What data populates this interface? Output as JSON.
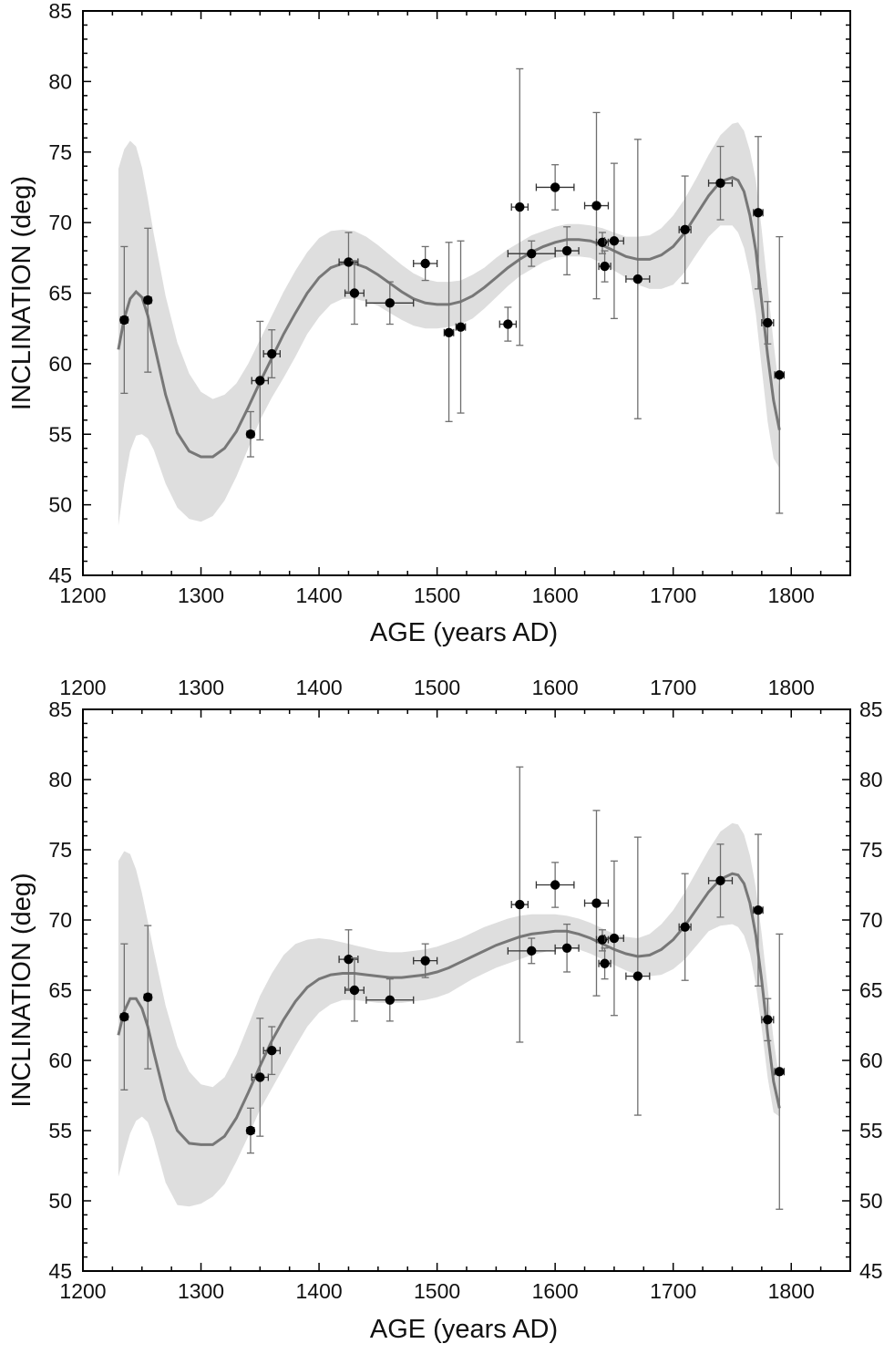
{
  "chart_data": [
    {
      "type": "scatter",
      "panel": "top",
      "title": "",
      "xlabel": "AGE (years AD)",
      "ylabel": "INCLINATION (deg)",
      "xlim": [
        1200,
        1850
      ],
      "ylim": [
        45,
        85
      ],
      "x_ticks": [
        1200,
        1300,
        1400,
        1500,
        1600,
        1700,
        1800
      ],
      "x_tick_labels": [
        "1200",
        "1300",
        "1400",
        "1500",
        "1600",
        "1700",
        "1800"
      ],
      "y_ticks": [
        45,
        50,
        55,
        60,
        65,
        70,
        75,
        80,
        85
      ],
      "y_tick_labels": [
        "45",
        "50",
        "55",
        "60",
        "65",
        "70",
        "75",
        "80",
        "85"
      ],
      "x_tick_labels_top": [],
      "y_tick_labels_right": [],
      "grid": false,
      "points": [
        {
          "x": 1235,
          "y": 63.1,
          "xerr": 3,
          "ylo": 57.9,
          "yhi": 68.3
        },
        {
          "x": 1255,
          "y": 64.5,
          "xerr": 3,
          "ylo": 59.4,
          "yhi": 69.6
        },
        {
          "x": 1342,
          "y": 55.0,
          "xerr": 3,
          "ylo": 53.4,
          "yhi": 56.6
        },
        {
          "x": 1350,
          "y": 58.8,
          "xerr": 7,
          "ylo": 54.6,
          "yhi": 63.0
        },
        {
          "x": 1360,
          "y": 60.7,
          "xerr": 7,
          "ylo": 59.0,
          "yhi": 62.4
        },
        {
          "x": 1425,
          "y": 67.2,
          "xerr": 8,
          "ylo": 65.1,
          "yhi": 69.3
        },
        {
          "x": 1430,
          "y": 65.0,
          "xerr": 8,
          "ylo": 62.8,
          "yhi": 67.3
        },
        {
          "x": 1460,
          "y": 64.3,
          "xerr": 20,
          "ylo": 62.8,
          "yhi": 65.8
        },
        {
          "x": 1490,
          "y": 67.1,
          "xerr": 10,
          "ylo": 65.9,
          "yhi": 68.3
        },
        {
          "x": 1510,
          "y": 62.2,
          "xerr": 4,
          "ylo": 55.9,
          "yhi": 68.6
        },
        {
          "x": 1520,
          "y": 62.6,
          "xerr": 4,
          "ylo": 56.5,
          "yhi": 68.7
        },
        {
          "x": 1560,
          "y": 62.8,
          "xerr": 7,
          "ylo": 61.6,
          "yhi": 64.0
        },
        {
          "x": 1570,
          "y": 71.1,
          "xerr": 7,
          "ylo": 61.3,
          "yhi": 80.9
        },
        {
          "x": 1580,
          "y": 67.8,
          "xerr": 20,
          "ylo": 66.9,
          "yhi": 68.7
        },
        {
          "x": 1600,
          "y": 72.5,
          "xerr": 16,
          "ylo": 70.9,
          "yhi": 74.1
        },
        {
          "x": 1610,
          "y": 68.0,
          "xerr": 10,
          "ylo": 66.3,
          "yhi": 69.7
        },
        {
          "x": 1635,
          "y": 71.2,
          "xerr": 10,
          "ylo": 64.6,
          "yhi": 77.8
        },
        {
          "x": 1640,
          "y": 68.6,
          "xerr": 5,
          "ylo": 67.8,
          "yhi": 69.3
        },
        {
          "x": 1642,
          "y": 66.9,
          "xerr": 5,
          "ylo": 65.8,
          "yhi": 68.0
        },
        {
          "x": 1650,
          "y": 68.7,
          "xerr": 8,
          "ylo": 63.2,
          "yhi": 74.2
        },
        {
          "x": 1670,
          "y": 66.0,
          "xerr": 10,
          "ylo": 56.1,
          "yhi": 75.9
        },
        {
          "x": 1710,
          "y": 69.5,
          "xerr": 5,
          "ylo": 65.7,
          "yhi": 73.3
        },
        {
          "x": 1740,
          "y": 72.8,
          "xerr": 10,
          "ylo": 70.2,
          "yhi": 75.4
        },
        {
          "x": 1772,
          "y": 70.7,
          "xerr": 4,
          "ylo": 65.3,
          "yhi": 76.1
        },
        {
          "x": 1780,
          "y": 62.9,
          "xerr": 5,
          "ylo": 61.4,
          "yhi": 64.4
        },
        {
          "x": 1790,
          "y": 59.2,
          "xerr": 4,
          "ylo": 49.4,
          "yhi": 69.0
        }
      ],
      "curve": {
        "x": [
          1230,
          1235,
          1240,
          1245,
          1250,
          1255,
          1260,
          1270,
          1280,
          1290,
          1300,
          1310,
          1320,
          1330,
          1340,
          1350,
          1360,
          1370,
          1380,
          1390,
          1400,
          1410,
          1420,
          1430,
          1440,
          1450,
          1460,
          1470,
          1480,
          1490,
          1500,
          1510,
          1520,
          1530,
          1540,
          1550,
          1560,
          1570,
          1580,
          1590,
          1600,
          1610,
          1620,
          1630,
          1640,
          1650,
          1660,
          1670,
          1680,
          1690,
          1700,
          1710,
          1720,
          1730,
          1740,
          1750,
          1755,
          1760,
          1765,
          1770,
          1775,
          1780,
          1785,
          1790
        ],
        "y": [
          61.0,
          63.2,
          64.6,
          65.1,
          64.7,
          63.4,
          61.5,
          57.8,
          55.1,
          53.8,
          53.4,
          53.4,
          54.0,
          55.2,
          56.9,
          58.7,
          60.4,
          62.1,
          63.6,
          65.0,
          66.1,
          66.8,
          67.1,
          67.1,
          66.8,
          66.3,
          65.7,
          65.1,
          64.6,
          64.3,
          64.2,
          64.2,
          64.4,
          64.8,
          65.4,
          66.1,
          66.8,
          67.4,
          67.9,
          68.3,
          68.6,
          68.8,
          68.8,
          68.7,
          68.4,
          68.0,
          67.6,
          67.4,
          67.4,
          67.7,
          68.3,
          69.3,
          70.6,
          71.9,
          72.9,
          73.2,
          73.0,
          72.2,
          70.5,
          68.0,
          64.4,
          60.6,
          57.4,
          55.3
        ],
        "upper": [
          73.8,
          75.2,
          75.8,
          75.4,
          73.9,
          71.7,
          69.2,
          64.8,
          61.5,
          59.3,
          58.0,
          57.5,
          57.8,
          58.6,
          60.0,
          61.7,
          63.4,
          65.1,
          66.6,
          67.9,
          68.9,
          69.4,
          69.5,
          69.4,
          69.0,
          68.4,
          67.7,
          67.0,
          66.4,
          66.0,
          65.8,
          65.8,
          65.9,
          66.3,
          66.8,
          67.5,
          68.1,
          68.6,
          69.1,
          69.4,
          69.7,
          69.9,
          69.9,
          69.8,
          69.6,
          69.3,
          69.0,
          69.0,
          69.1,
          69.6,
          70.5,
          71.7,
          73.2,
          74.8,
          76.2,
          77.0,
          77.1,
          76.5,
          75.1,
          73.0,
          69.5,
          65.5,
          61.5,
          58.0
        ],
        "lower": [
          48.5,
          51.5,
          53.8,
          54.9,
          55.0,
          54.7,
          53.9,
          51.5,
          49.8,
          49.0,
          48.8,
          49.2,
          50.3,
          52.0,
          54.0,
          56.0,
          57.6,
          59.0,
          60.5,
          62.1,
          63.3,
          64.2,
          64.6,
          64.6,
          64.4,
          64.1,
          63.6,
          63.1,
          62.7,
          62.5,
          62.5,
          62.6,
          62.8,
          63.2,
          63.9,
          64.7,
          65.5,
          66.2,
          66.7,
          67.2,
          67.5,
          67.6,
          67.6,
          67.5,
          67.1,
          66.6,
          66.1,
          65.6,
          65.3,
          65.3,
          65.6,
          66.5,
          67.8,
          69.0,
          69.8,
          69.8,
          69.3,
          68.2,
          66.3,
          63.5,
          59.7,
          55.9,
          53.3,
          52.6
        ]
      }
    },
    {
      "type": "scatter",
      "panel": "bottom",
      "title": "",
      "xlabel": "AGE (years AD)",
      "ylabel": "INCLINATION (deg)",
      "xlim": [
        1200,
        1850
      ],
      "ylim": [
        45,
        85
      ],
      "x_ticks": [
        1200,
        1300,
        1400,
        1500,
        1600,
        1700,
        1800
      ],
      "x_tick_labels": [
        "1200",
        "1300",
        "1400",
        "1500",
        "1600",
        "1700",
        "1800"
      ],
      "y_ticks": [
        45,
        50,
        55,
        60,
        65,
        70,
        75,
        80,
        85
      ],
      "y_tick_labels": [
        "45",
        "50",
        "55",
        "60",
        "65",
        "70",
        "75",
        "80",
        "85"
      ],
      "x_tick_labels_top": [
        "1200",
        "1300",
        "1400",
        "1500",
        "1600",
        "1700",
        "1800"
      ],
      "y_tick_labels_right": [
        "45",
        "50",
        "55",
        "60",
        "65",
        "70",
        "75",
        "80",
        "85"
      ],
      "grid": false,
      "points": [
        {
          "x": 1235,
          "y": 63.1,
          "xerr": 3,
          "ylo": 57.9,
          "yhi": 68.3
        },
        {
          "x": 1255,
          "y": 64.5,
          "xerr": 3,
          "ylo": 59.4,
          "yhi": 69.6
        },
        {
          "x": 1342,
          "y": 55.0,
          "xerr": 3,
          "ylo": 53.4,
          "yhi": 56.6
        },
        {
          "x": 1350,
          "y": 58.8,
          "xerr": 7,
          "ylo": 54.6,
          "yhi": 63.0
        },
        {
          "x": 1360,
          "y": 60.7,
          "xerr": 7,
          "ylo": 59.0,
          "yhi": 62.4
        },
        {
          "x": 1425,
          "y": 67.2,
          "xerr": 8,
          "ylo": 65.1,
          "yhi": 69.3
        },
        {
          "x": 1430,
          "y": 65.0,
          "xerr": 8,
          "ylo": 62.8,
          "yhi": 67.3
        },
        {
          "x": 1460,
          "y": 64.3,
          "xerr": 20,
          "ylo": 62.8,
          "yhi": 65.8
        },
        {
          "x": 1490,
          "y": 67.1,
          "xerr": 10,
          "ylo": 65.9,
          "yhi": 68.3
        },
        {
          "x": 1570,
          "y": 71.1,
          "xerr": 7,
          "ylo": 61.3,
          "yhi": 80.9
        },
        {
          "x": 1580,
          "y": 67.8,
          "xerr": 20,
          "ylo": 66.9,
          "yhi": 68.7
        },
        {
          "x": 1600,
          "y": 72.5,
          "xerr": 16,
          "ylo": 70.9,
          "yhi": 74.1
        },
        {
          "x": 1610,
          "y": 68.0,
          "xerr": 10,
          "ylo": 66.3,
          "yhi": 69.7
        },
        {
          "x": 1635,
          "y": 71.2,
          "xerr": 10,
          "ylo": 64.6,
          "yhi": 77.8
        },
        {
          "x": 1640,
          "y": 68.6,
          "xerr": 5,
          "ylo": 67.8,
          "yhi": 69.3
        },
        {
          "x": 1642,
          "y": 66.9,
          "xerr": 5,
          "ylo": 65.8,
          "yhi": 68.0
        },
        {
          "x": 1650,
          "y": 68.7,
          "xerr": 8,
          "ylo": 63.2,
          "yhi": 74.2
        },
        {
          "x": 1670,
          "y": 66.0,
          "xerr": 10,
          "ylo": 56.1,
          "yhi": 75.9
        },
        {
          "x": 1710,
          "y": 69.5,
          "xerr": 5,
          "ylo": 65.7,
          "yhi": 73.3
        },
        {
          "x": 1740,
          "y": 72.8,
          "xerr": 10,
          "ylo": 70.2,
          "yhi": 75.4
        },
        {
          "x": 1772,
          "y": 70.7,
          "xerr": 4,
          "ylo": 65.3,
          "yhi": 76.1
        },
        {
          "x": 1780,
          "y": 62.9,
          "xerr": 5,
          "ylo": 61.4,
          "yhi": 64.4
        },
        {
          "x": 1790,
          "y": 59.2,
          "xerr": 4,
          "ylo": 49.4,
          "yhi": 69.0
        }
      ],
      "curve": {
        "x": [
          1230,
          1235,
          1240,
          1245,
          1250,
          1255,
          1260,
          1270,
          1280,
          1290,
          1300,
          1310,
          1320,
          1330,
          1340,
          1350,
          1360,
          1370,
          1380,
          1390,
          1400,
          1410,
          1420,
          1430,
          1440,
          1450,
          1460,
          1470,
          1480,
          1490,
          1500,
          1510,
          1520,
          1530,
          1540,
          1550,
          1560,
          1570,
          1580,
          1590,
          1600,
          1610,
          1620,
          1630,
          1640,
          1650,
          1660,
          1670,
          1680,
          1690,
          1700,
          1710,
          1720,
          1730,
          1740,
          1750,
          1755,
          1760,
          1765,
          1770,
          1775,
          1780,
          1785,
          1790
        ],
        "y": [
          61.8,
          63.5,
          64.4,
          64.4,
          63.7,
          62.4,
          60.6,
          57.2,
          55.0,
          54.1,
          54.0,
          54.0,
          54.6,
          55.9,
          57.7,
          59.6,
          61.4,
          62.9,
          64.2,
          65.2,
          65.8,
          66.1,
          66.2,
          66.2,
          66.1,
          66.0,
          65.9,
          65.9,
          66.0,
          66.1,
          66.3,
          66.6,
          67.0,
          67.4,
          67.8,
          68.2,
          68.5,
          68.8,
          69.0,
          69.1,
          69.2,
          69.2,
          69.0,
          68.7,
          68.3,
          67.9,
          67.6,
          67.4,
          67.5,
          67.9,
          68.6,
          69.6,
          70.8,
          72.0,
          72.9,
          73.3,
          73.2,
          72.6,
          71.2,
          68.9,
          65.7,
          61.9,
          58.5,
          56.6
        ],
        "upper": [
          74.2,
          74.9,
          74.7,
          73.6,
          71.9,
          69.9,
          67.8,
          63.9,
          61.0,
          59.2,
          58.3,
          58.1,
          58.8,
          60.4,
          62.5,
          64.6,
          66.2,
          67.5,
          68.3,
          68.6,
          68.7,
          68.6,
          68.4,
          68.2,
          68.0,
          67.8,
          67.7,
          67.7,
          67.8,
          67.9,
          68.1,
          68.4,
          68.7,
          69.1,
          69.5,
          69.8,
          70.1,
          70.3,
          70.4,
          70.4,
          70.4,
          70.3,
          70.1,
          69.8,
          69.4,
          69.0,
          68.8,
          68.7,
          69.0,
          69.7,
          70.7,
          72.0,
          73.5,
          75.0,
          76.3,
          76.9,
          76.8,
          76.1,
          74.6,
          72.3,
          69.0,
          65.2,
          61.5,
          58.6
        ],
        "lower": [
          51.7,
          53.3,
          54.8,
          55.7,
          56.0,
          55.6,
          54.4,
          51.3,
          49.7,
          49.6,
          49.8,
          50.3,
          51.2,
          52.8,
          54.6,
          56.5,
          58.0,
          59.5,
          61.0,
          62.4,
          63.4,
          64.0,
          64.3,
          64.3,
          64.2,
          64.1,
          64.1,
          64.1,
          64.2,
          64.3,
          64.5,
          64.8,
          65.3,
          65.8,
          66.2,
          66.6,
          66.9,
          67.2,
          67.5,
          67.7,
          67.9,
          68.0,
          67.9,
          67.6,
          67.2,
          66.8,
          66.4,
          66.1,
          66.0,
          66.1,
          66.5,
          67.2,
          68.2,
          69.2,
          69.6,
          69.7,
          69.5,
          68.9,
          67.6,
          65.4,
          62.3,
          58.8,
          56.3,
          56.0
        ]
      }
    }
  ]
}
